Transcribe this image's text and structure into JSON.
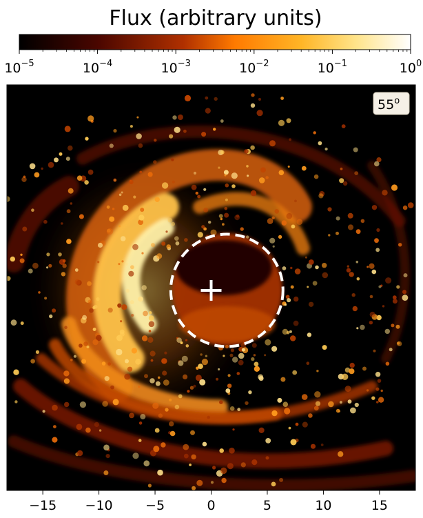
{
  "chart_data": {
    "type": "heatmap",
    "title": "Flux (arbitrary units)",
    "colorbar": {
      "scale": "log",
      "orientation": "horizontal",
      "position": "top",
      "range": [
        1e-05,
        1
      ],
      "colormap": "afmhot",
      "tick_labels": [
        {
          "value": 1e-05,
          "base": "10",
          "exp": "−5"
        },
        {
          "value": 0.0001,
          "base": "10",
          "exp": "−4"
        },
        {
          "value": 0.001,
          "base": "10",
          "exp": "−3"
        },
        {
          "value": 0.01,
          "base": "10",
          "exp": "−2"
        },
        {
          "value": 0.1,
          "base": "10",
          "exp": "−1"
        },
        {
          "value": 1,
          "base": "10",
          "exp": "0"
        }
      ]
    },
    "image": {
      "xlim": [
        -18.2,
        18.2
      ],
      "x_ticks": [
        -15,
        -10,
        -5,
        0,
        5,
        10,
        15
      ],
      "x_tick_labels": [
        "−15",
        "−10",
        "−5",
        "0",
        "5",
        "10",
        "15"
      ],
      "inclination_label": {
        "base": "55",
        "sup": "o"
      },
      "center_marker": {
        "x": 0,
        "y": 0,
        "symbol": "+"
      },
      "dashed_circle": {
        "cx": 1.4,
        "cy": 0.0,
        "r": 5.0,
        "color": "#ffffff"
      },
      "background": "#000000"
    },
    "grid": false
  }
}
